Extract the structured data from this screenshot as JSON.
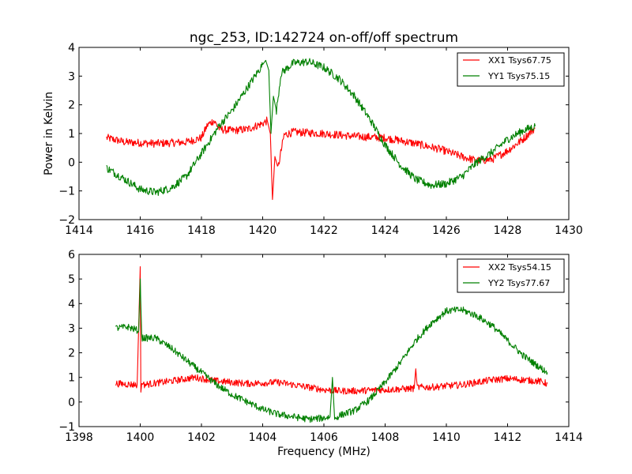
{
  "figure": {
    "title": "ngc_253, ID:142724 on-off/off spectrum",
    "ylabel": "Power in Kelvin",
    "xlabel": "Frequency (MHz)"
  },
  "colors": {
    "xx": "#ff0000",
    "yy": "#008000"
  },
  "chart_data": [
    {
      "type": "line",
      "title": "ngc_253, ID:142724 on-off/off spectrum",
      "xlabel": "",
      "ylabel": "Power in Kelvin",
      "xlim": [
        1414,
        1430
      ],
      "ylim": [
        -2,
        4
      ],
      "xticks": [
        "1414",
        "1416",
        "1418",
        "1420",
        "1422",
        "1424",
        "1426",
        "1428",
        "1430"
      ],
      "yticks": [
        "−2",
        "−1",
        "0",
        "1",
        "2",
        "3",
        "4"
      ],
      "grid": false,
      "legend_position": "top-right",
      "series": [
        {
          "name": "XX1 Tsys67.75",
          "color": "#ff0000",
          "x": [
            1414.9,
            1415.5,
            1416.5,
            1417.5,
            1418.0,
            1418.2,
            1418.4,
            1418.6,
            1419.0,
            1419.5,
            1420.0,
            1420.15,
            1420.25,
            1420.32,
            1420.4,
            1420.5,
            1420.7,
            1421.0,
            1422.0,
            1423.0,
            1424.0,
            1425.0,
            1425.8,
            1426.5,
            1427.0,
            1427.5,
            1428.0,
            1428.5,
            1428.9
          ],
          "y": [
            0.85,
            0.7,
            0.65,
            0.7,
            0.85,
            1.3,
            1.45,
            1.15,
            1.1,
            1.15,
            1.35,
            1.45,
            1.0,
            -1.3,
            0.2,
            -0.2,
            0.95,
            1.05,
            1.0,
            0.9,
            0.85,
            0.65,
            0.45,
            0.2,
            0.05,
            0.1,
            0.4,
            0.8,
            1.2
          ]
        },
        {
          "name": "YY1 Tsys75.15",
          "color": "#008000",
          "x": [
            1414.9,
            1415.5,
            1416.0,
            1416.5,
            1417.0,
            1417.5,
            1418.0,
            1418.3,
            1418.6,
            1419.0,
            1419.5,
            1420.0,
            1420.1,
            1420.2,
            1420.27,
            1420.35,
            1420.45,
            1420.6,
            1421.0,
            1421.5,
            1422.0,
            1422.5,
            1423.0,
            1423.5,
            1424.0,
            1424.5,
            1425.0,
            1425.5,
            1426.0,
            1426.5,
            1427.0,
            1427.5,
            1428.0,
            1428.5,
            1428.9
          ],
          "y": [
            -0.2,
            -0.6,
            -0.95,
            -1.05,
            -0.9,
            -0.5,
            0.3,
            0.8,
            1.3,
            1.8,
            2.6,
            3.4,
            3.55,
            3.2,
            1.0,
            2.3,
            1.8,
            3.1,
            3.45,
            3.5,
            3.3,
            2.9,
            2.3,
            1.5,
            0.6,
            -0.1,
            -0.6,
            -0.8,
            -0.75,
            -0.5,
            0.0,
            0.35,
            0.8,
            1.1,
            1.25
          ]
        }
      ]
    },
    {
      "type": "line",
      "title": "",
      "xlabel": "Frequency (MHz)",
      "ylabel": "",
      "xlim": [
        1398,
        1414
      ],
      "ylim": [
        -1,
        6
      ],
      "xticks": [
        "1398",
        "1400",
        "1402",
        "1404",
        "1406",
        "1408",
        "1410",
        "1412",
        "1414"
      ],
      "yticks": [
        "−1",
        "0",
        "1",
        "2",
        "3",
        "4",
        "5",
        "6"
      ],
      "grid": false,
      "legend_position": "top-right",
      "series": [
        {
          "name": "XX2 Tsys54.15",
          "color": "#ff0000",
          "x": [
            1399.2,
            1399.9,
            1400.0,
            1400.02,
            1400.05,
            1400.1,
            1401.0,
            1401.8,
            1402.5,
            1403.5,
            1404.5,
            1405.0,
            1406.0,
            1406.5,
            1407.0,
            1408.0,
            1408.95,
            1409.0,
            1409.05,
            1409.5,
            1410.0,
            1410.5,
            1411.0,
            1411.5,
            1412.0,
            1412.5,
            1413.0,
            1413.3
          ],
          "y": [
            0.75,
            0.7,
            5.5,
            0.4,
            0.75,
            0.7,
            0.85,
            1.0,
            0.85,
            0.75,
            0.8,
            0.7,
            0.5,
            0.45,
            0.45,
            0.5,
            0.55,
            1.35,
            0.6,
            0.6,
            0.65,
            0.7,
            0.8,
            0.9,
            0.95,
            0.9,
            0.85,
            0.75
          ]
        },
        {
          "name": "YY2 Tsys77.67",
          "color": "#008000",
          "x": [
            1399.2,
            1399.6,
            1399.95,
            1400.0,
            1400.05,
            1400.5,
            1401.0,
            1401.5,
            1402.0,
            1402.5,
            1403.0,
            1403.5,
            1404.0,
            1404.5,
            1405.0,
            1405.5,
            1406.0,
            1406.2,
            1406.28,
            1406.35,
            1406.5,
            1407.0,
            1407.5,
            1408.0,
            1408.5,
            1409.0,
            1409.5,
            1410.0,
            1410.5,
            1411.0,
            1411.5,
            1412.0,
            1412.5,
            1413.0,
            1413.3
          ],
          "y": [
            3.0,
            3.05,
            2.9,
            5.0,
            2.6,
            2.6,
            2.2,
            1.7,
            1.2,
            0.7,
            0.3,
            0.0,
            -0.3,
            -0.5,
            -0.6,
            -0.7,
            -0.65,
            -0.6,
            1.0,
            -0.7,
            -0.55,
            -0.35,
            0.1,
            0.8,
            1.6,
            2.5,
            3.2,
            3.7,
            3.75,
            3.5,
            3.1,
            2.5,
            1.9,
            1.45,
            1.2
          ]
        }
      ]
    }
  ]
}
